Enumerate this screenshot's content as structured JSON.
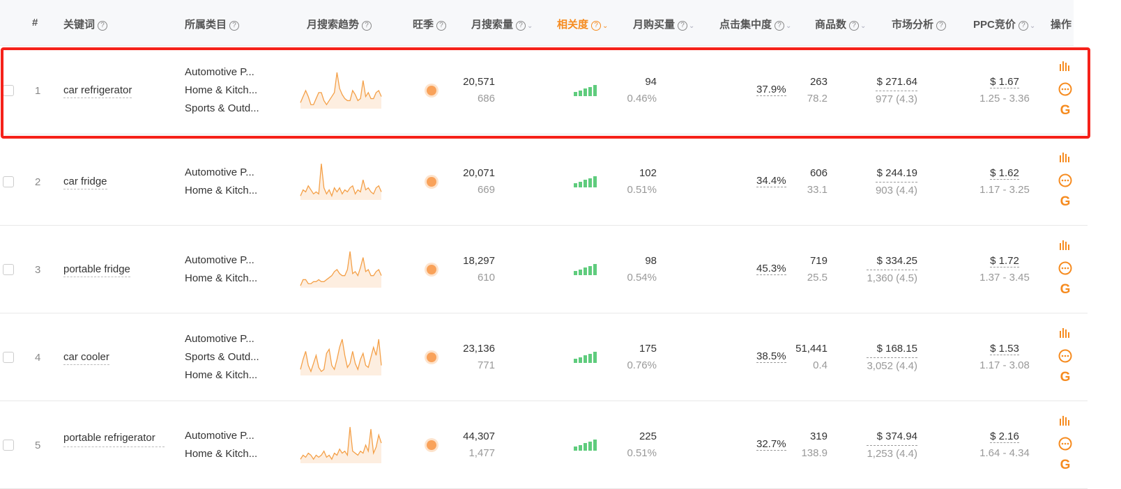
{
  "header": {
    "cols": [
      {
        "key": "index",
        "label": "#",
        "help": false,
        "sort": false
      },
      {
        "key": "keyword",
        "label": "关键词",
        "help": true,
        "sort": false
      },
      {
        "key": "category",
        "label": "所属类目",
        "help": true,
        "sort": false
      },
      {
        "key": "trend",
        "label": "月搜索趋势",
        "help": true,
        "sort": false
      },
      {
        "key": "peak",
        "label": "旺季",
        "help": true,
        "sort": false
      },
      {
        "key": "search",
        "label": "月搜索量",
        "help": true,
        "sort": true
      },
      {
        "key": "relevance",
        "label": "相关度",
        "help": true,
        "sort": true,
        "active": true
      },
      {
        "key": "purchase",
        "label": "月购买量",
        "help": true,
        "sort": true
      },
      {
        "key": "click",
        "label": "点击集中度",
        "help": true,
        "sort": true
      },
      {
        "key": "products",
        "label": "商品数",
        "help": true,
        "sort": true
      },
      {
        "key": "market",
        "label": "市场分析",
        "help": true,
        "sort": false
      },
      {
        "key": "ppc",
        "label": "PPC竞价",
        "help": true,
        "sort": true
      },
      {
        "key": "ops",
        "label": "操作",
        "help": false,
        "sort": false
      }
    ]
  },
  "accent": "#f68b1f",
  "relevance_color": "#5fcc7d",
  "highlight_color": "#f5211a",
  "rows": [
    {
      "index": "1",
      "keyword": "car refrigerator",
      "categories": [
        "Automotive P...",
        "Home & Kitch...",
        "Sports & Outd..."
      ],
      "trend": [
        3,
        6,
        9,
        6,
        2,
        2,
        5,
        8,
        8,
        4,
        2,
        4,
        6,
        8,
        18,
        10,
        7,
        5,
        4,
        4,
        9,
        7,
        4,
        5,
        14,
        6,
        8,
        5,
        5,
        8,
        9,
        6
      ],
      "search": "20,571",
      "search_sub": "686",
      "relevance_level": 5,
      "purchase": "94",
      "purchase_sub": "0.46%",
      "click": "37.9%",
      "products": "263",
      "products_sub": "78.2",
      "market_price": "$ 271.64",
      "market_sub": "977 (4.3)",
      "ppc": "$ 1.67",
      "ppc_range": "1.25 - 3.36",
      "highlighted": true
    },
    {
      "index": "2",
      "keyword": "car fridge",
      "categories": [
        "Automotive P...",
        "Home & Kitch..."
      ],
      "trend": [
        2,
        5,
        4,
        7,
        5,
        3,
        4,
        3,
        18,
        6,
        3,
        5,
        2,
        6,
        4,
        6,
        3,
        5,
        4,
        6,
        7,
        3,
        5,
        4,
        10,
        5,
        6,
        4,
        3,
        6,
        7,
        4
      ],
      "search": "20,071",
      "search_sub": "669",
      "relevance_level": 5,
      "purchase": "102",
      "purchase_sub": "0.51%",
      "click": "34.4%",
      "products": "606",
      "products_sub": "33.1",
      "market_price": "$ 244.19",
      "market_sub": "903 (4.4)",
      "ppc": "$ 1.62",
      "ppc_range": "1.17 - 3.25"
    },
    {
      "index": "3",
      "keyword": "portable fridge",
      "categories": [
        "Automotive P...",
        "Home & Kitch..."
      ],
      "trend": [
        1,
        4,
        4,
        2,
        2,
        3,
        3,
        4,
        3,
        3,
        4,
        5,
        6,
        8,
        9,
        7,
        6,
        6,
        9,
        18,
        7,
        8,
        6,
        10,
        15,
        8,
        9,
        6,
        6,
        8,
        9,
        6
      ],
      "search": "18,297",
      "search_sub": "610",
      "relevance_level": 5,
      "purchase": "98",
      "purchase_sub": "0.54%",
      "click": "45.3%",
      "products": "719",
      "products_sub": "25.5",
      "market_price": "$ 334.25",
      "market_sub": "1,360 (4.5)",
      "ppc": "$ 1.72",
      "ppc_range": "1.37 - 3.45"
    },
    {
      "index": "4",
      "keyword": "car cooler",
      "categories": [
        "Automotive P...",
        "Sports & Outd...",
        "Home & Kitch..."
      ],
      "trend": [
        3,
        8,
        12,
        5,
        2,
        6,
        10,
        4,
        2,
        3,
        11,
        13,
        5,
        3,
        8,
        14,
        18,
        10,
        4,
        6,
        12,
        6,
        3,
        8,
        11,
        5,
        4,
        9,
        14,
        10,
        18,
        5
      ],
      "search": "23,136",
      "search_sub": "771",
      "relevance_level": 5,
      "purchase": "175",
      "purchase_sub": "0.76%",
      "click": "38.5%",
      "products": "51,441",
      "products_sub": "0.4",
      "market_price": "$ 168.15",
      "market_sub": "3,052 (4.4)",
      "ppc": "$ 1.53",
      "ppc_range": "1.17 - 3.08"
    },
    {
      "index": "5",
      "keyword": "portable refrigerator",
      "categories": [
        "Automotive P...",
        "Home & Kitch..."
      ],
      "trend": [
        2,
        4,
        3,
        5,
        4,
        2,
        4,
        3,
        4,
        6,
        3,
        4,
        2,
        5,
        4,
        7,
        5,
        6,
        4,
        18,
        6,
        5,
        4,
        6,
        5,
        9,
        6,
        17,
        5,
        8,
        14,
        10
      ],
      "search": "44,307",
      "search_sub": "1,477",
      "relevance_level": 5,
      "purchase": "225",
      "purchase_sub": "0.51%",
      "click": "32.7%",
      "products": "319",
      "products_sub": "138.9",
      "market_price": "$ 374.94",
      "market_sub": "1,253 (4.4)",
      "ppc": "$ 2.16",
      "ppc_range": "1.64 - 4.34"
    }
  ]
}
